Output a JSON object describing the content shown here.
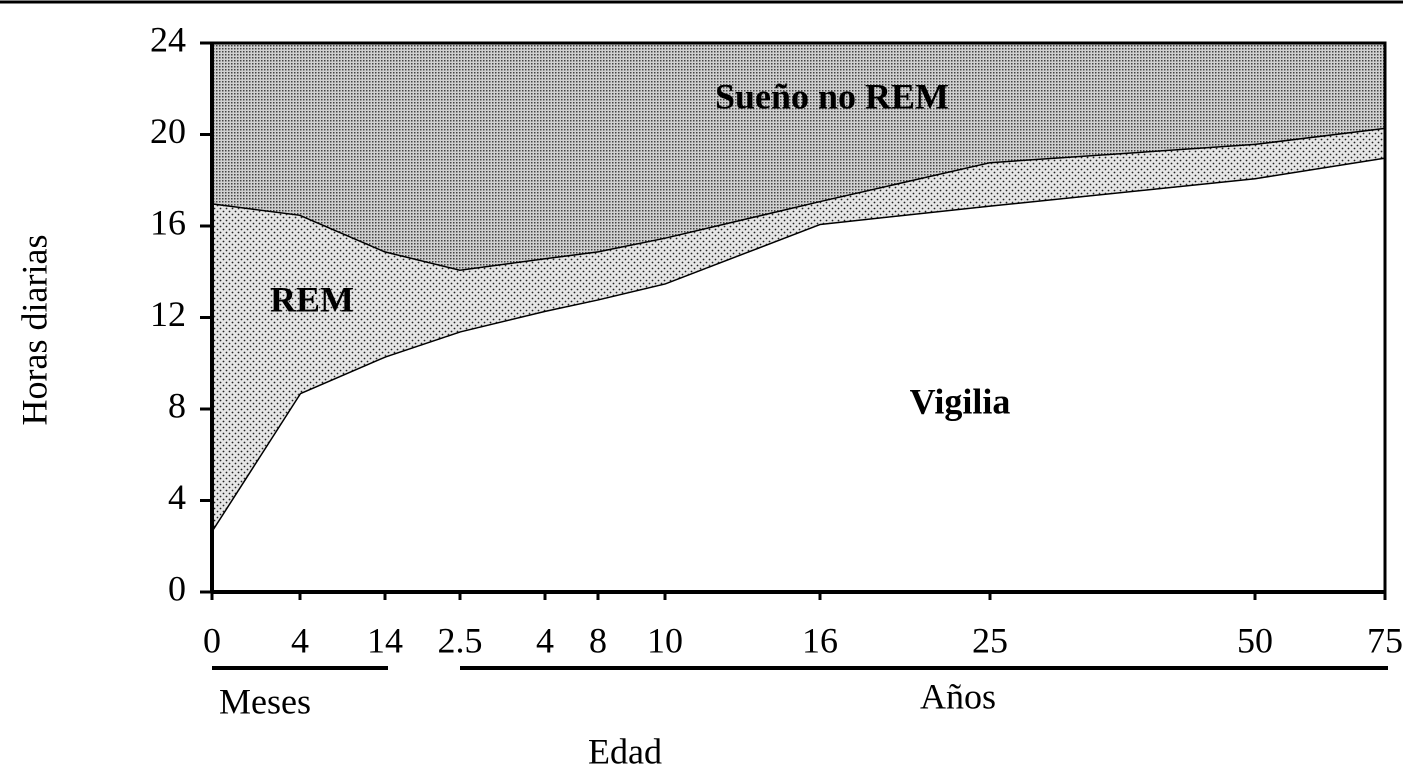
{
  "chart_data": {
    "type": "area",
    "stacked": true,
    "y_label": "Horas diarias",
    "x_label": "Edad",
    "categories": [
      "0",
      "4",
      "14",
      "2.5",
      "4",
      "8",
      "10",
      "16",
      "25",
      "50",
      "75"
    ],
    "x_groups": [
      "Meses",
      "Años"
    ],
    "series": [
      {
        "name": "Vigilia",
        "color": "#ffffff",
        "values": [
          2.7,
          8.7,
          10.3,
          11.4,
          12.3,
          12.8,
          13.5,
          16.1,
          16.9,
          18.1,
          19.0
        ]
      },
      {
        "name": "REM",
        "color": "#e6e6e6",
        "values": [
          14.3,
          7.8,
          4.6,
          2.7,
          2.3,
          2.1,
          2.0,
          1.0,
          1.9,
          1.5,
          1.3
        ]
      },
      {
        "name": "Sueño no REM",
        "color": "#d0d0d0",
        "values": [
          7.0,
          7.5,
          9.1,
          9.9,
          9.4,
          9.1,
          8.5,
          6.9,
          5.2,
          4.4,
          3.7
        ]
      }
    ],
    "ylim": [
      0,
      24
    ],
    "yticks": [
      0,
      4,
      8,
      12,
      16,
      20,
      24
    ]
  }
}
